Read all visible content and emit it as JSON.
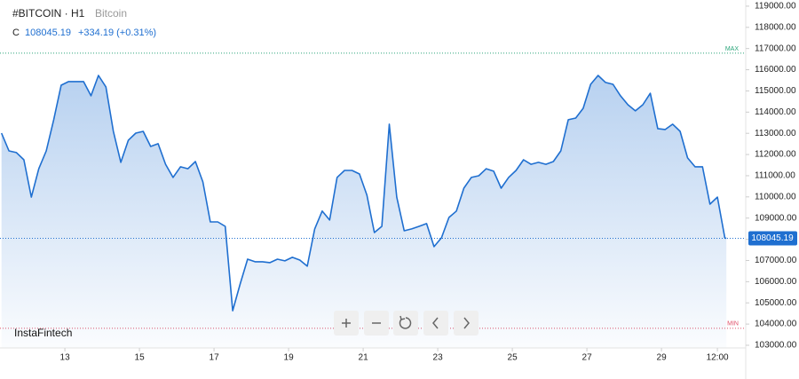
{
  "header": {
    "symbol": "#BITCOIN · H1",
    "name": "Bitcoin",
    "close_label": "C",
    "close": "108045.19",
    "change": "+334.19 (+0.31%)"
  },
  "brand": "InstaFintech",
  "chart_data": {
    "type": "area",
    "color": "#1f6fd0",
    "grid": false,
    "x": [
      11.3,
      11.5,
      11.7,
      11.9,
      12.1,
      12.3,
      12.5,
      12.7,
      12.9,
      13.1,
      13.3,
      13.5,
      13.7,
      13.9,
      14.1,
      14.3,
      14.5,
      14.7,
      14.9,
      15.1,
      15.3,
      15.5,
      15.7,
      15.9,
      16.1,
      16.3,
      16.5,
      16.7,
      16.9,
      17.1,
      17.3,
      17.5,
      17.7,
      17.9,
      18.1,
      18.3,
      18.5,
      18.7,
      18.9,
      19.1,
      19.3,
      19.5,
      19.7,
      19.9,
      20.1,
      20.3,
      20.5,
      20.7,
      20.9,
      21.1,
      21.3,
      21.5,
      21.7,
      21.9,
      22.1,
      22.3,
      22.5,
      22.7,
      22.9,
      23.1,
      23.3,
      23.5,
      23.7,
      23.9,
      24.1,
      24.3,
      24.5,
      24.7,
      24.9,
      25.1,
      25.3,
      25.5,
      25.7,
      25.9,
      26.1,
      26.3,
      26.5,
      26.7,
      26.9,
      27.1,
      27.3,
      27.5,
      27.7,
      27.9,
      28.1,
      28.3,
      28.5,
      28.7,
      28.9,
      29.1,
      29.3,
      29.5,
      29.7,
      29.9,
      30.1,
      30.3,
      30.5,
      30.7,
      30.74
    ],
    "values": [
      113010,
      112170,
      112090,
      111750,
      109990,
      111330,
      112170,
      113640,
      115270,
      115440,
      115440,
      115440,
      114770,
      115730,
      115190,
      113090,
      111630,
      112670,
      113010,
      113090,
      112380,
      112510,
      111540,
      110920,
      111420,
      111330,
      111670,
      110710,
      108820,
      108820,
      108610,
      104630,
      105890,
      107060,
      106940,
      106940,
      106900,
      107060,
      106980,
      107150,
      107020,
      106730,
      108490,
      109330,
      108910,
      110920,
      111250,
      111250,
      111080,
      110080,
      108320,
      108610,
      113430,
      109990,
      108400,
      108490,
      108610,
      108740,
      107650,
      108070,
      109030,
      109330,
      110410,
      110920,
      111000,
      111330,
      111210,
      110410,
      110920,
      111250,
      111750,
      111540,
      111630,
      111540,
      111670,
      112170,
      113640,
      113720,
      114180,
      115310,
      115730,
      115400,
      115310,
      114770,
      114350,
      114060,
      114350,
      114890,
      113220,
      113180,
      113430,
      113090,
      111840,
      111420,
      111420,
      109660,
      109990,
      108060,
      108045.19
    ],
    "xlim": [
      11.26,
      31.26
    ],
    "ylim": [
      102120,
      119290
    ],
    "xticks": [
      13,
      15,
      17,
      19,
      21,
      23,
      25,
      27,
      29,
      {
        "value": 30.5,
        "label": "12:00"
      }
    ],
    "yticks": [
      {
        "value": 103000,
        "label": "103000.00"
      },
      {
        "value": 104000,
        "label": "104000.00"
      },
      {
        "value": 105000,
        "label": "105000.00"
      },
      {
        "value": 106000,
        "label": "106000.00"
      },
      {
        "value": 107000,
        "label": "107000.00"
      },
      {
        "value": 108000,
        "label": "108000.00"
      },
      {
        "value": 109000,
        "label": "109000.00"
      },
      {
        "value": 110000,
        "label": "110000.00"
      },
      {
        "value": 111000,
        "label": "111000.00"
      },
      {
        "value": 112000,
        "label": "112000.00"
      },
      {
        "value": 113000,
        "label": "113000.00"
      },
      {
        "value": 114000,
        "label": "114000.00"
      },
      {
        "value": 115000,
        "label": "115000.00"
      },
      {
        "value": 116000,
        "label": "116000.00"
      },
      {
        "value": 117000,
        "label": "117000.00"
      },
      {
        "value": 118000,
        "label": "118000.00"
      },
      {
        "value": 119000,
        "label": "119000.00"
      }
    ],
    "max_line": {
      "value": 116780,
      "label": "MAX"
    },
    "min_line": {
      "value": 103800,
      "label": "MIN"
    },
    "last_price": {
      "value": 108045.19,
      "label": "108045.19"
    }
  }
}
